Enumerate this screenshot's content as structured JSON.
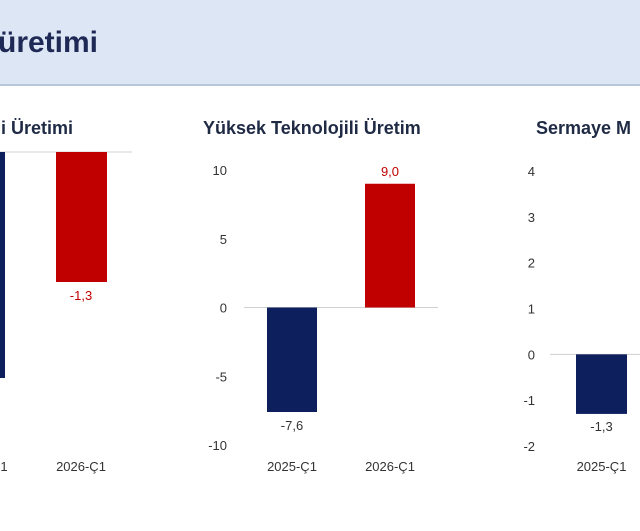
{
  "header": {
    "title": "üretimi"
  },
  "colors": {
    "navy": "#0d1f5c",
    "red": "#c00000",
    "neg_label": "#333333",
    "pos_label": "#c00000"
  },
  "chart_data": [
    {
      "type": "bar",
      "title": "li Üretimi",
      "categories": [
        "1",
        "2026-Ç1"
      ],
      "values": [
        null,
        -1.3
      ],
      "value_labels": [
        "",
        "-1,3"
      ],
      "yticks": [],
      "ylim": [
        -6,
        0
      ]
    },
    {
      "type": "bar",
      "title": "Yüksek Teknolojili Üretim",
      "categories": [
        "2025-Ç1",
        "2026-Ç1"
      ],
      "values": [
        -7.6,
        9.0
      ],
      "value_labels": [
        "-7,6",
        "9,0"
      ],
      "yticks": [
        "10",
        "5",
        "0",
        "-5",
        "-10"
      ],
      "ylim": [
        -10,
        10
      ]
    },
    {
      "type": "bar",
      "title": "Sermaye M",
      "categories": [
        "2025-Ç1"
      ],
      "values": [
        -1.3
      ],
      "value_labels": [
        "-1,3"
      ],
      "yticks": [
        "4",
        "3",
        "2",
        "1",
        "0",
        "-1",
        "-2"
      ],
      "ylim": [
        -2,
        4
      ]
    }
  ]
}
